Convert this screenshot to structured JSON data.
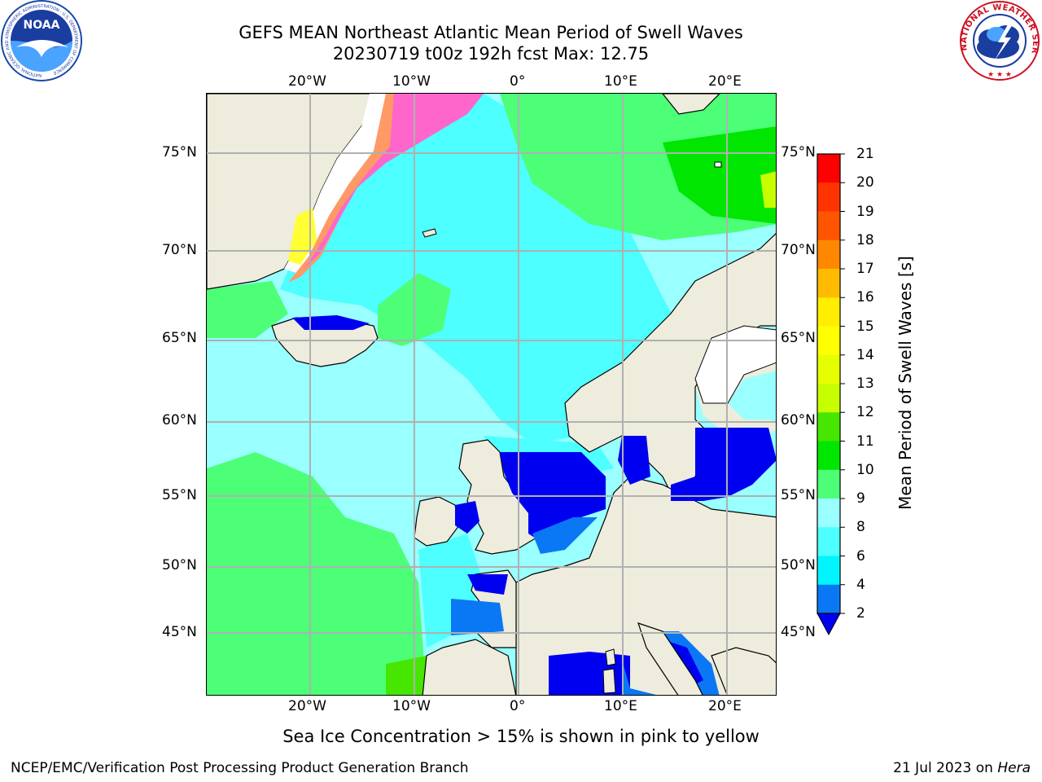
{
  "header": {
    "title": "GEFS MEAN Northeast Atlantic Mean Period of Swell Waves",
    "subtitle": "20230719 t00z 192h fcst   Max: 12.75"
  },
  "logos": {
    "noaa": "NOAA",
    "noaa_ring": "NATIONAL OCEANIC AND ATMOSPHERIC ADMINISTRATION · U.S. DEPARTMENT OF COMMERCE",
    "nws_ring": "NATIONAL WEATHER SERVICE"
  },
  "map": {
    "lon_labels": [
      "20°W",
      "10°W",
      "0°",
      "10°E",
      "20°E"
    ],
    "lat_labels": [
      "75°N",
      "70°N",
      "65°N",
      "60°N",
      "55°N",
      "50°N",
      "45°N"
    ],
    "colors": {
      "land": "#eeecdc",
      "grid": "#b0b0b0",
      "ocean_main": "#99ffff",
      "ocean_light": "#4dffff",
      "ocean_green": "#4cff77",
      "ocean_dark": "#0000f0",
      "ice_pink": "#ff66cc",
      "ice_orange": "#ff9966",
      "ice_yellow": "#ffff33"
    }
  },
  "colorbar": {
    "label": "Mean Period of Swell Waves [s]",
    "ticks": [
      "2",
      "4",
      "6",
      "8",
      "9",
      "10",
      "11",
      "12",
      "13",
      "14",
      "15",
      "16",
      "17",
      "18",
      "19",
      "20",
      "21"
    ],
    "colors": [
      "#0000f0",
      "#0a78f5",
      "#00f5ff",
      "#4dffff",
      "#99ffff",
      "#4cff77",
      "#00e600",
      "#46e600",
      "#c8ff00",
      "#e6ff00",
      "#ffff00",
      "#ffee00",
      "#ffbb00",
      "#ff8800",
      "#ff5500",
      "#ff3300",
      "#ff0000"
    ]
  },
  "caption": "Sea Ice Concentration > 15% is shown in pink to yellow",
  "footer": {
    "left": "NCEP/EMC/Verification Post Processing Product Generation Branch",
    "right_date": "21 Jul 2023 on ",
    "right_host": "Hera"
  }
}
